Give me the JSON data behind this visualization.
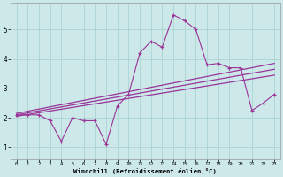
{
  "x": [
    0,
    1,
    2,
    3,
    4,
    5,
    6,
    7,
    8,
    9,
    10,
    11,
    12,
    13,
    14,
    15,
    16,
    17,
    18,
    19,
    20,
    21,
    22,
    23
  ],
  "y": [
    2.1,
    2.1,
    2.1,
    1.9,
    1.2,
    2.0,
    1.9,
    1.9,
    1.1,
    2.4,
    2.8,
    4.2,
    4.6,
    4.4,
    5.5,
    5.3,
    5.0,
    3.8,
    3.85,
    3.7,
    3.7,
    2.25,
    2.5,
    2.8
  ],
  "line_color": "#993399",
  "bg_color": "#cce8e8",
  "grid_color": "#aad4d4",
  "xlabel": "Windchill (Refroidissement éolien,°C)",
  "xlim": [
    -0.5,
    23.5
  ],
  "ylim": [
    0.6,
    5.9
  ],
  "yticks": [
    1,
    2,
    3,
    4,
    5
  ],
  "xticks": [
    0,
    1,
    2,
    3,
    4,
    5,
    6,
    7,
    8,
    9,
    10,
    11,
    12,
    13,
    14,
    15,
    16,
    17,
    18,
    19,
    20,
    21,
    22,
    23
  ],
  "reg_lines": [
    {
      "x0": 0.0,
      "y0": 2.15,
      "x1": 23.0,
      "y1": 3.85
    },
    {
      "x0": 0.0,
      "y0": 2.1,
      "x1": 23.0,
      "y1": 3.65
    },
    {
      "x0": 0.0,
      "y0": 2.05,
      "x1": 23.0,
      "y1": 3.45
    }
  ]
}
